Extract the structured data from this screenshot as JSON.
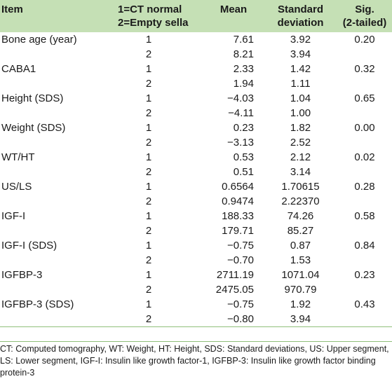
{
  "table": {
    "headers": {
      "item": "Item",
      "group_line1": "1=CT normal",
      "group_line2": "2=Empty sella",
      "mean": "Mean",
      "sd_line1": "Standard",
      "sd_line2": "deviation",
      "sig_line1": "Sig.",
      "sig_line2": "(2-tailed)"
    },
    "rows": [
      {
        "item": "Bone age (year)",
        "g1": "1",
        "mean1": "7.61",
        "sd1": "3.92",
        "g2": "2",
        "mean2": "8.21",
        "sd2": "3.94",
        "sig": "0.20"
      },
      {
        "item": "CABA1",
        "g1": "1",
        "mean1": "2.33",
        "sd1": "1.42",
        "g2": "2",
        "mean2": "1.94",
        "sd2": "1.11",
        "sig": "0.32"
      },
      {
        "item": "Height (SDS)",
        "g1": "1",
        "mean1": "−4.03",
        "sd1": "1.04",
        "g2": "2",
        "mean2": "−4.11",
        "sd2": "1.00",
        "sig": "0.65"
      },
      {
        "item": "Weight (SDS)",
        "g1": "1",
        "mean1": "0.23",
        "sd1": "1.82",
        "g2": "2",
        "mean2": "−3.13",
        "sd2": "2.52",
        "sig": "0.00"
      },
      {
        "item": "WT/HT",
        "g1": "1",
        "mean1": "0.53",
        "sd1": "2.12",
        "g2": "2",
        "mean2": "0.51",
        "sd2": "3.14",
        "sig": "0.02"
      },
      {
        "item": "US/LS",
        "g1": "1",
        "mean1": "0.6564",
        "sd1": "1.70615",
        "g2": "2",
        "mean2": "0.9474",
        "sd2": "2.22370",
        "sig": "0.28"
      },
      {
        "item": "IGF-I",
        "g1": "1",
        "mean1": "188.33",
        "sd1": "74.26",
        "g2": "2",
        "mean2": "179.71",
        "sd2": "85.27",
        "sig": "0.58"
      },
      {
        "item": "IGF-I (SDS)",
        "g1": "1",
        "mean1": "−0.75",
        "sd1": "0.87",
        "g2": "2",
        "mean2": "−0.70",
        "sd2": "1.53",
        "sig": "0.84"
      },
      {
        "item": "IGFBP-3",
        "g1": "1",
        "mean1": "2711.19",
        "sd1": "1071.04",
        "g2": "2",
        "mean2": "2475.05",
        "sd2": "970.79",
        "sig": "0.23"
      },
      {
        "item": "IGFBP-3 (SDS)",
        "g1": "1",
        "mean1": "−0.75",
        "sd1": "1.92",
        "g2": "2",
        "mean2": "−0.80",
        "sd2": "3.94",
        "sig": "0.43"
      }
    ]
  },
  "footnote": "CT: Computed tomography, WT: Weight, HT: Height, SDS: Standard deviations, US: Upper segment, LS: Lower segment, IGF-I: Insulin like growth factor-1, IGFBP-3: Insulin like growth factor binding protein-3",
  "colors": {
    "header_bg": "#c5e0b5",
    "rule": "#8fbf7a"
  }
}
